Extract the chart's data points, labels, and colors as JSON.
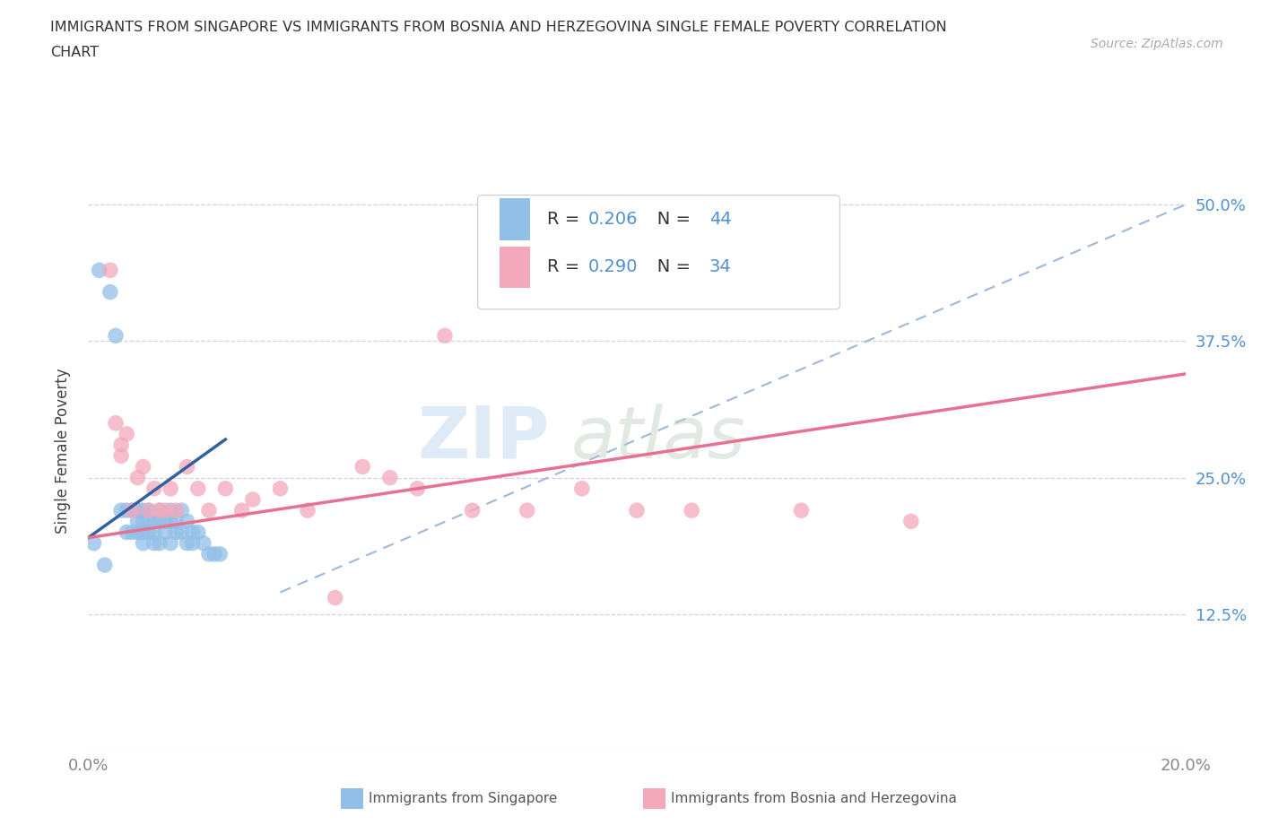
{
  "title_line1": "IMMIGRANTS FROM SINGAPORE VS IMMIGRANTS FROM BOSNIA AND HERZEGOVINA SINGLE FEMALE POVERTY CORRELATION",
  "title_line2": "CHART",
  "source_text": "Source: ZipAtlas.com",
  "ylabel": "Single Female Poverty",
  "xlim": [
    0.0,
    0.2
  ],
  "ylim": [
    0.0,
    0.55
  ],
  "r_singapore": 0.206,
  "n_singapore": 44,
  "r_bosnia": 0.29,
  "n_bosnia": 34,
  "color_singapore": "#92bfe8",
  "color_bosnia": "#f4a8bc",
  "color_trendline_singapore": "#3560a0",
  "color_trendline_bosnia": "#e87090",
  "color_trendline_dashed": "#a0b8d8",
  "color_grid": "#c8c8d8",
  "color_ytick": "#5090d0",
  "color_xtick": "#888888",
  "singapore_x": [
    0.002,
    0.004,
    0.005,
    0.006,
    0.007,
    0.007,
    0.008,
    0.008,
    0.009,
    0.009,
    0.009,
    0.01,
    0.01,
    0.01,
    0.01,
    0.011,
    0.011,
    0.011,
    0.012,
    0.012,
    0.012,
    0.013,
    0.013,
    0.013,
    0.014,
    0.014,
    0.015,
    0.015,
    0.015,
    0.016,
    0.016,
    0.017,
    0.017,
    0.018,
    0.018,
    0.019,
    0.019,
    0.02,
    0.021,
    0.022,
    0.023,
    0.024,
    0.001,
    0.003
  ],
  "singapore_y": [
    0.44,
    0.42,
    0.38,
    0.22,
    0.22,
    0.2,
    0.22,
    0.2,
    0.22,
    0.21,
    0.2,
    0.22,
    0.21,
    0.2,
    0.19,
    0.22,
    0.21,
    0.2,
    0.21,
    0.2,
    0.19,
    0.22,
    0.21,
    0.19,
    0.21,
    0.2,
    0.22,
    0.21,
    0.19,
    0.21,
    0.2,
    0.22,
    0.2,
    0.21,
    0.19,
    0.2,
    0.19,
    0.2,
    0.19,
    0.18,
    0.18,
    0.18,
    0.19,
    0.17
  ],
  "bosnia_x": [
    0.004,
    0.005,
    0.006,
    0.006,
    0.007,
    0.008,
    0.009,
    0.01,
    0.011,
    0.012,
    0.013,
    0.014,
    0.015,
    0.016,
    0.018,
    0.02,
    0.022,
    0.025,
    0.028,
    0.03,
    0.035,
    0.04,
    0.045,
    0.05,
    0.055,
    0.06,
    0.065,
    0.07,
    0.08,
    0.09,
    0.1,
    0.11,
    0.13,
    0.15
  ],
  "bosnia_y": [
    0.44,
    0.3,
    0.28,
    0.27,
    0.29,
    0.22,
    0.25,
    0.26,
    0.22,
    0.24,
    0.22,
    0.22,
    0.24,
    0.22,
    0.26,
    0.24,
    0.22,
    0.24,
    0.22,
    0.23,
    0.24,
    0.22,
    0.14,
    0.26,
    0.25,
    0.24,
    0.38,
    0.22,
    0.22,
    0.24,
    0.22,
    0.22,
    0.22,
    0.21
  ],
  "sg_trend_x": [
    0.0,
    0.025
  ],
  "sg_trend_y": [
    0.195,
    0.285
  ],
  "bos_trend_x": [
    0.0,
    0.2
  ],
  "bos_trend_y": [
    0.195,
    0.345
  ],
  "dashed_trend_x": [
    0.035,
    0.2
  ],
  "dashed_trend_y": [
    0.145,
    0.5
  ]
}
